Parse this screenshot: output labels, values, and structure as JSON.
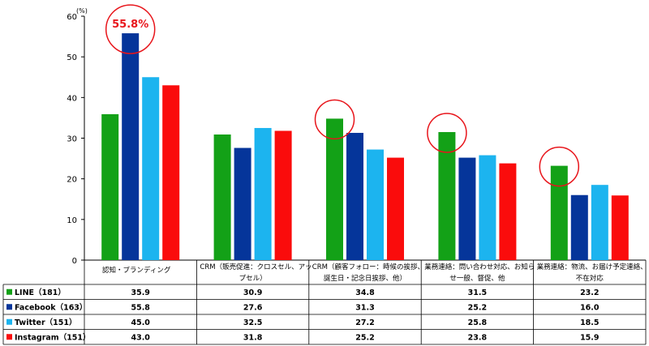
{
  "chart_data": {
    "type": "bar",
    "title": "",
    "xlabel": "",
    "ylabel": "",
    "unit_label": "(%)",
    "ylim": [
      0,
      60
    ],
    "yticks": [
      0,
      10,
      20,
      30,
      40,
      50,
      60
    ],
    "grid": false,
    "legend_placement": "table-left",
    "categories": [
      "認知・ブランディング",
      "CRM（販売促進：クロスセル、アップセル）",
      "CRM（顧客フォロー：時候の挨拶、誕生日・記念日挨拶、他）",
      "業務連絡：問い合わせ対応、お知らせ一般、督促、他",
      "業務連絡：物流、お届け予定連絡、不在対応"
    ],
    "category_lines": [
      [
        "認知・ブランディング"
      ],
      [
        "CRM（販売促進：クロスセル、アッ",
        "プセル）"
      ],
      [
        "CRM（顧客フォロー：時候の挨拶、",
        "誕生日・記念日挨拶、他）"
      ],
      [
        "業務連絡：問い合わせ対応、お知ら",
        "せ一般、督促、他"
      ],
      [
        "業務連絡：物流、お届け予定連絡、",
        "不在対応"
      ]
    ],
    "series": [
      {
        "name": "LINE（181）",
        "color": "#13a117",
        "values": [
          35.9,
          30.9,
          34.8,
          31.5,
          23.2
        ]
      },
      {
        "name": "Facebook（163）",
        "color": "#05359a",
        "values": [
          55.8,
          27.6,
          31.3,
          25.2,
          16.0
        ]
      },
      {
        "name": "Twitter（151）",
        "color": "#1cb4ef",
        "values": [
          45.0,
          32.5,
          27.2,
          25.8,
          18.5
        ]
      },
      {
        "name": "Instagram（151）",
        "color": "#fa0c0c",
        "values": [
          43.0,
          31.8,
          25.2,
          23.8,
          15.9
        ]
      }
    ],
    "table_values": [
      [
        "35.9",
        "30.9",
        "34.8",
        "31.5",
        "23.2"
      ],
      [
        "55.8",
        "27.6",
        "31.3",
        "25.2",
        "16.0"
      ],
      [
        "45.0",
        "32.5",
        "27.2",
        "25.8",
        "18.5"
      ],
      [
        "43.0",
        "31.8",
        "25.2",
        "23.8",
        "15.9"
      ]
    ],
    "annotations": [
      {
        "label": "55.8%",
        "category": 0,
        "series": 1,
        "value": 55.8
      },
      {
        "label": "",
        "category": 2,
        "series": 0,
        "value": 34.8
      },
      {
        "label": "",
        "category": 3,
        "series": 0,
        "value": 31.5
      },
      {
        "label": "",
        "category": 4,
        "series": 0,
        "value": 23.2
      }
    ],
    "highlight_color": "#e8151b"
  }
}
